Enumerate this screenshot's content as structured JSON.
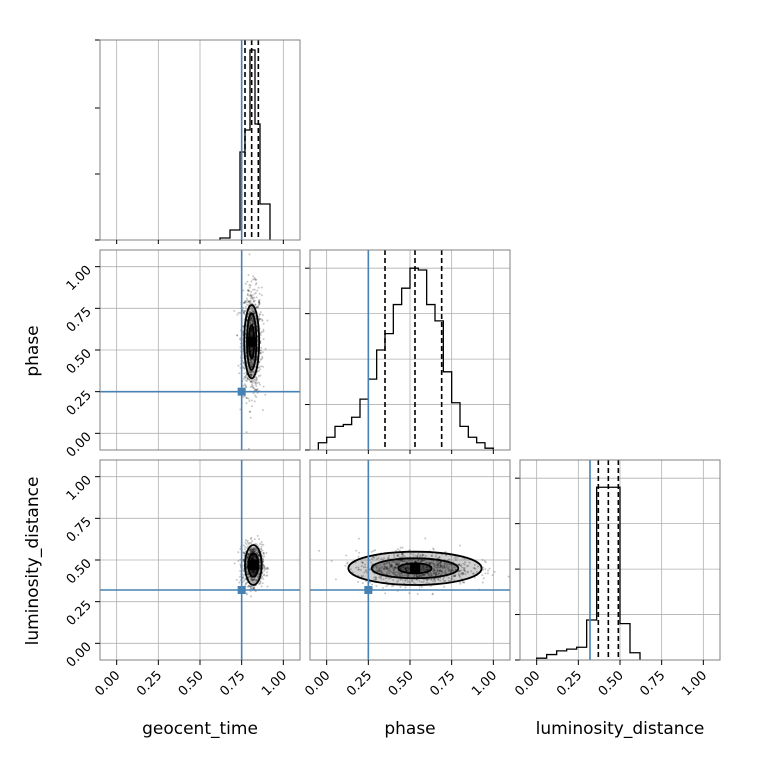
{
  "colors": {
    "truth": "#4682b4",
    "line": "#000000",
    "grid": "#b0b0b0",
    "frame": "#808080"
  },
  "chart_data": {
    "type": "corner",
    "parameters": [
      "geocent_time",
      "phase",
      "luminosity_distance"
    ],
    "axis_range": [
      -0.1,
      1.1
    ],
    "ticks": [
      0.0,
      0.25,
      0.5,
      0.75,
      1.0
    ],
    "tick_labels": [
      "0.00",
      "0.25",
      "0.50",
      "0.75",
      "1.00"
    ],
    "truths": {
      "geocent_time": 0.75,
      "phase": 0.25,
      "luminosity_distance": 0.32
    },
    "quantiles": {
      "geocent_time": [
        0.77,
        0.81,
        0.85
      ],
      "phase": [
        0.35,
        0.53,
        0.69
      ],
      "luminosity_distance": [
        0.37,
        0.43,
        0.49
      ]
    },
    "histograms": {
      "geocent_time": {
        "edges": [
          0.62,
          0.68,
          0.74,
          0.77,
          0.8,
          0.83,
          0.86,
          0.92
        ],
        "counts": [
          0.01,
          0.05,
          0.44,
          0.55,
          0.95,
          0.58,
          0.18
        ],
        "ymax": 1.0
      },
      "phase": {
        "edges": [
          -0.05,
          0.0,
          0.05,
          0.1,
          0.15,
          0.2,
          0.25,
          0.3,
          0.35,
          0.4,
          0.45,
          0.5,
          0.55,
          0.6,
          0.65,
          0.7,
          0.75,
          0.8,
          0.85,
          0.9,
          0.95,
          1.0
        ],
        "counts": [
          0.04,
          0.07,
          0.13,
          0.14,
          0.18,
          0.28,
          0.39,
          0.55,
          0.64,
          0.8,
          0.89,
          1.0,
          0.99,
          0.8,
          0.71,
          0.43,
          0.26,
          0.13,
          0.07,
          0.04,
          0.01
        ],
        "ymax": 1.1
      },
      "luminosity_distance": {
        "edges": [
          0.0,
          0.06,
          0.12,
          0.18,
          0.24,
          0.3,
          0.36,
          0.5,
          0.56,
          0.62
        ],
        "counts": [
          0.01,
          0.03,
          0.05,
          0.06,
          0.07,
          0.22,
          0.95,
          0.2,
          0.04
        ],
        "ymax": 1.1
      }
    },
    "panels_2d": [
      {
        "x": "geocent_time",
        "y": "phase",
        "center": [
          0.81,
          0.55
        ],
        "spread": [
          0.03,
          0.16
        ],
        "contours": [
          [
            0.045,
            0.22
          ],
          [
            0.028,
            0.17
          ],
          [
            0.015,
            0.1
          ]
        ]
      },
      {
        "x": "geocent_time",
        "y": "luminosity_distance",
        "center": [
          0.82,
          0.47
        ],
        "spread": [
          0.03,
          0.06
        ],
        "contours": [
          [
            0.05,
            0.12
          ],
          [
            0.03,
            0.07
          ]
        ]
      },
      {
        "x": "phase",
        "y": "luminosity_distance",
        "center": [
          0.53,
          0.45
        ],
        "spread": [
          0.17,
          0.05
        ],
        "contours": [
          [
            0.4,
            0.1
          ],
          [
            0.26,
            0.06
          ],
          [
            0.1,
            0.03
          ]
        ]
      }
    ]
  }
}
